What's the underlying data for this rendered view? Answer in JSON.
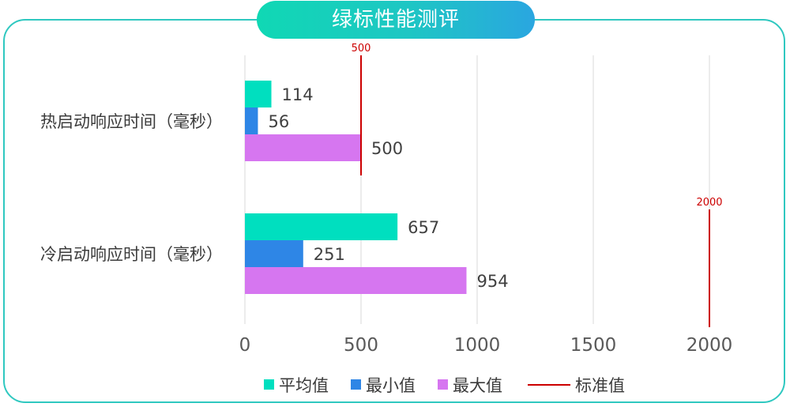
{
  "title": "绿标性能测评",
  "chart_data": {
    "type": "bar",
    "orientation": "horizontal",
    "categories": [
      "热启动响应时间（毫秒）",
      "冷启动响应时间（毫秒）"
    ],
    "series": [
      {
        "name": "平均值",
        "values": [
          114,
          657
        ],
        "color": "#00dfbf"
      },
      {
        "name": "最小值",
        "values": [
          56,
          251
        ],
        "color": "#2e86e6"
      },
      {
        "name": "最大值",
        "values": [
          500,
          954
        ],
        "color": "#d676f0"
      }
    ],
    "reference_lines": {
      "name": "标准值",
      "color": "#cc0000",
      "values": [
        500,
        2000
      ],
      "labels": [
        "500",
        "2000"
      ]
    },
    "xlim": [
      0,
      2000
    ],
    "xticks": [
      0,
      500,
      1000,
      1500,
      2000
    ],
    "xtick_labels": [
      "0",
      "500",
      "1000",
      "1500",
      "2000"
    ],
    "grid": "vertical",
    "legend_position": "bottom"
  }
}
